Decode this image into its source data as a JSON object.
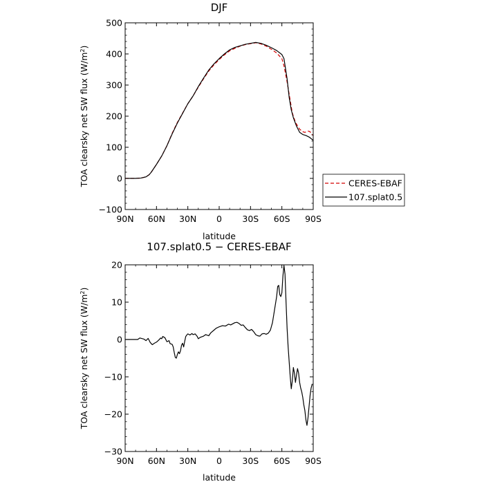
{
  "chart_data": [
    {
      "type": "line",
      "title": "DJF",
      "xlabel": "latitude",
      "ylabel_main": "TOA clearsky net SW flux (W/m",
      "ylabel_sup": "2",
      "ylabel_close": ")",
      "xlim": [
        90,
        -90
      ],
      "ylim": [
        -100,
        500
      ],
      "x_ticks": [
        90,
        60,
        30,
        0,
        -30,
        -60,
        -90
      ],
      "x_tick_labels": [
        "90N",
        "60N",
        "30N",
        "0",
        "30S",
        "60S",
        "90S"
      ],
      "y_ticks": [
        -100,
        0,
        100,
        200,
        300,
        400,
        500
      ],
      "y_tick_labels": [
        "−100",
        "0",
        "100",
        "200",
        "300",
        "400",
        "500"
      ],
      "legend": [
        {
          "name": "CERES-EBAF",
          "color": "#d40000",
          "dash": "5,3"
        },
        {
          "name": "107.splat0.5",
          "color": "#000000",
          "dash": ""
        }
      ],
      "series": [
        {
          "name": "CERES-EBAF",
          "color": "#d40000",
          "dash": "5,3",
          "points": [
            [
              90,
              0
            ],
            [
              80,
              0
            ],
            [
              75,
              1
            ],
            [
              70,
              5
            ],
            [
              67,
              12
            ],
            [
              65,
              20
            ],
            [
              60,
              45
            ],
            [
              55,
              72
            ],
            [
              50,
              105
            ],
            [
              45,
              145
            ],
            [
              40,
              180
            ],
            [
              35,
              210
            ],
            [
              30,
              240
            ],
            [
              25,
              265
            ],
            [
              20,
              293
            ],
            [
              15,
              320
            ],
            [
              10,
              345
            ],
            [
              5,
              365
            ],
            [
              0,
              382
            ],
            [
              -5,
              397
            ],
            [
              -10,
              410
            ],
            [
              -15,
              418
            ],
            [
              -20,
              425
            ],
            [
              -25,
              430
            ],
            [
              -30,
              433
            ],
            [
              -35,
              436
            ],
            [
              -40,
              432
            ],
            [
              -45,
              425
            ],
            [
              -50,
              415
            ],
            [
              -55,
              403
            ],
            [
              -60,
              385
            ],
            [
              -62,
              362
            ],
            [
              -65,
              310
            ],
            [
              -68,
              250
            ],
            [
              -70,
              210
            ],
            [
              -73,
              180
            ],
            [
              -77,
              158
            ],
            [
              -80,
              150
            ],
            [
              -82,
              148
            ],
            [
              -85,
              152
            ],
            [
              -87,
              150
            ],
            [
              -88,
              143
            ],
            [
              -90,
              138
            ]
          ]
        },
        {
          "name": "107.splat0.5",
          "color": "#000000",
          "dash": "",
          "points": [
            [
              90,
              0
            ],
            [
              80,
              0
            ],
            [
              75,
              1
            ],
            [
              70,
              5
            ],
            [
              67,
              12
            ],
            [
              65,
              20
            ],
            [
              60,
              45
            ],
            [
              55,
              72
            ],
            [
              50,
              105
            ],
            [
              45,
              143
            ],
            [
              40,
              178
            ],
            [
              35,
              209
            ],
            [
              30,
              240
            ],
            [
              25,
              265
            ],
            [
              20,
              295
            ],
            [
              15,
              322
            ],
            [
              10,
              348
            ],
            [
              5,
              368
            ],
            [
              0,
              385
            ],
            [
              -5,
              400
            ],
            [
              -10,
              413
            ],
            [
              -15,
              421
            ],
            [
              -20,
              426
            ],
            [
              -25,
              431
            ],
            [
              -30,
              434
            ],
            [
              -35,
              437
            ],
            [
              -40,
              434
            ],
            [
              -45,
              428
            ],
            [
              -50,
              420
            ],
            [
              -55,
              411
            ],
            [
              -60,
              398
            ],
            [
              -62,
              385
            ],
            [
              -65,
              320
            ],
            [
              -67,
              260
            ],
            [
              -69,
              220
            ],
            [
              -71,
              195
            ],
            [
              -74,
              168
            ],
            [
              -77,
              148
            ],
            [
              -80,
              141
            ],
            [
              -83,
              138
            ],
            [
              -86,
              133
            ],
            [
              -88,
              128
            ],
            [
              -90,
              122
            ]
          ]
        }
      ]
    },
    {
      "type": "line",
      "title": "107.splat0.5 − CERES-EBAF",
      "xlabel": "latitude",
      "ylabel_main": "TOA clearsky net SW flux (W/m",
      "ylabel_sup": "2",
      "ylabel_close": ")",
      "xlim": [
        90,
        -90
      ],
      "ylim": [
        -30,
        20
      ],
      "x_ticks": [
        90,
        60,
        30,
        0,
        -30,
        -60,
        -90
      ],
      "x_tick_labels": [
        "90N",
        "60N",
        "30N",
        "0",
        "30S",
        "60S",
        "90S"
      ],
      "y_ticks": [
        -30,
        -20,
        -10,
        0,
        10,
        20
      ],
      "y_tick_labels": [
        "−30",
        "−20",
        "−10",
        "0",
        "10",
        "20"
      ],
      "series": [
        {
          "name": "107.splat0.5 − CERES-EBAF",
          "color": "#000000",
          "dash": "",
          "points": [
            [
              90,
              0
            ],
            [
              78,
              0
            ],
            [
              76,
              0.4
            ],
            [
              72,
              0.1
            ],
            [
              70,
              -0.3
            ],
            [
              68,
              0.3
            ],
            [
              66,
              -0.8
            ],
            [
              64,
              -1.4
            ],
            [
              62,
              -1.0
            ],
            [
              60,
              -0.7
            ],
            [
              58,
              -0.2
            ],
            [
              56,
              0.4
            ],
            [
              55,
              0.2
            ],
            [
              54,
              0.8
            ],
            [
              52,
              0.5
            ],
            [
              50,
              -0.6
            ],
            [
              48,
              -0.3
            ],
            [
              47,
              -1.1
            ],
            [
              45,
              -1.3
            ],
            [
              44,
              -2.0
            ],
            [
              43,
              -3.5
            ],
            [
              42,
              -4.8
            ],
            [
              41,
              -5.0
            ],
            [
              40,
              -4.0
            ],
            [
              39,
              -3.3
            ],
            [
              38,
              -3.8
            ],
            [
              37,
              -3.0
            ],
            [
              36,
              -1.5
            ],
            [
              35,
              -1.0
            ],
            [
              34,
              -2.0
            ],
            [
              33,
              -0.5
            ],
            [
              32,
              0.8
            ],
            [
              31,
              1.2
            ],
            [
              30,
              1.5
            ],
            [
              28,
              1.2
            ],
            [
              26,
              1.6
            ],
            [
              25,
              1.3
            ],
            [
              23,
              1.5
            ],
            [
              21,
              0.8
            ],
            [
              20,
              0.2
            ],
            [
              18,
              0.6
            ],
            [
              15,
              0.9
            ],
            [
              13,
              1.3
            ],
            [
              10,
              1.0
            ],
            [
              8,
              1.8
            ],
            [
              5,
              2.5
            ],
            [
              3,
              3.0
            ],
            [
              0,
              3.4
            ],
            [
              -3,
              3.7
            ],
            [
              -6,
              3.6
            ],
            [
              -9,
              4.1
            ],
            [
              -11,
              3.9
            ],
            [
              -13,
              4.2
            ],
            [
              -15,
              4.5
            ],
            [
              -17,
              4.6
            ],
            [
              -19,
              4.3
            ],
            [
              -21,
              3.8
            ],
            [
              -23,
              3.9
            ],
            [
              -25,
              3.2
            ],
            [
              -27,
              2.6
            ],
            [
              -29,
              2.4
            ],
            [
              -31,
              2.7
            ],
            [
              -33,
              2.1
            ],
            [
              -35,
              1.3
            ],
            [
              -37,
              1.0
            ],
            [
              -39,
              0.9
            ],
            [
              -41,
              1.5
            ],
            [
              -43,
              1.6
            ],
            [
              -45,
              1.4
            ],
            [
              -47,
              1.7
            ],
            [
              -49,
              2.5
            ],
            [
              -51,
              4.5
            ],
            [
              -53,
              8.0
            ],
            [
              -55,
              11.5
            ],
            [
              -56,
              14.2
            ],
            [
              -57,
              14.5
            ],
            [
              -58,
              12.0
            ],
            [
              -59,
              11.5
            ],
            [
              -60,
              12.5
            ],
            [
              -61,
              17.0
            ],
            [
              -62,
              19.8
            ],
            [
              -63,
              17.5
            ],
            [
              -64,
              10.0
            ],
            [
              -65,
              3.0
            ],
            [
              -66,
              -2.0
            ],
            [
              -67,
              -6.0
            ],
            [
              -68,
              -10.0
            ],
            [
              -69,
              -13.2
            ],
            [
              -70,
              -11.0
            ],
            [
              -71,
              -7.5
            ],
            [
              -72,
              -9.0
            ],
            [
              -73,
              -11.5
            ],
            [
              -74,
              -9.5
            ],
            [
              -75,
              -7.8
            ],
            [
              -76,
              -9.0
            ],
            [
              -77,
              -11.5
            ],
            [
              -78,
              -13.0
            ],
            [
              -79,
              -14.0
            ],
            [
              -80,
              -15.5
            ],
            [
              -81,
              -17.5
            ],
            [
              -82,
              -19.0
            ],
            [
              -83,
              -21.5
            ],
            [
              -84,
              -23.0
            ],
            [
              -85,
              -21.0
            ],
            [
              -86,
              -18.0
            ],
            [
              -87,
              -15.0
            ],
            [
              -88,
              -13.0
            ],
            [
              -89,
              -12.0
            ]
          ]
        }
      ]
    }
  ]
}
